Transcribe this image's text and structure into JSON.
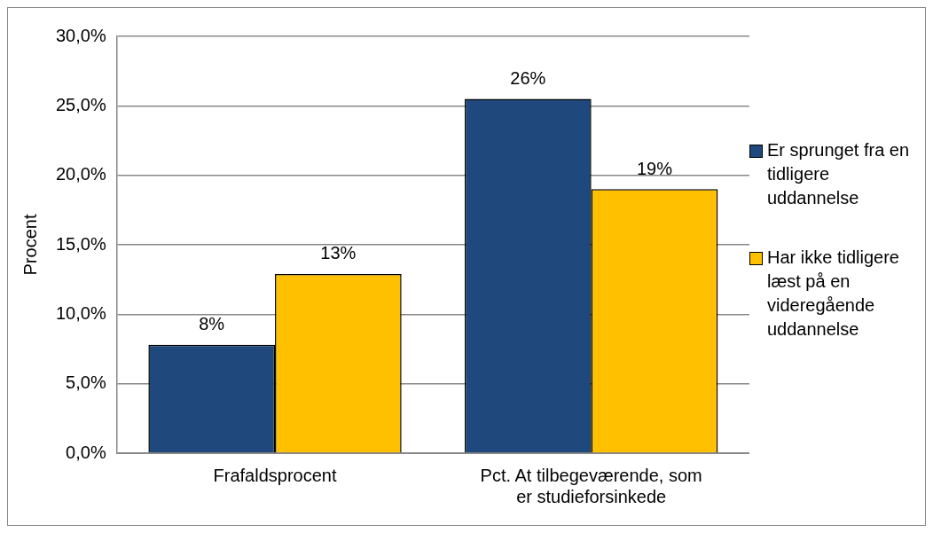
{
  "chart_data": {
    "type": "bar",
    "ylabel": "Procent",
    "categories": [
      "Frafaldsprocent",
      "Pct. At tilbegeværende, som er studieforsinkede"
    ],
    "series": [
      {
        "name": "Er sprunget fra en tidligere uddannelse",
        "color": "#1f497d",
        "values": [
          7.8,
          25.5
        ],
        "value_labels": [
          "8%",
          "26%"
        ]
      },
      {
        "name": "Har ikke tidligere læst på en videregående uddannelse",
        "color": "#ffc000",
        "values": [
          12.9,
          19.0
        ],
        "value_labels": [
          "13%",
          "19%"
        ]
      }
    ],
    "ylim": [
      0,
      30
    ],
    "yticks": [
      {
        "value": 0,
        "label": "0,0%"
      },
      {
        "value": 5,
        "label": "5,0%"
      },
      {
        "value": 10,
        "label": "10,0%"
      },
      {
        "value": 15,
        "label": "15,0%"
      },
      {
        "value": 20,
        "label": "20,0%"
      },
      {
        "value": 25,
        "label": "25,0%"
      },
      {
        "value": 30,
        "label": "30,0%"
      }
    ],
    "grid": "y",
    "legend": "right"
  }
}
